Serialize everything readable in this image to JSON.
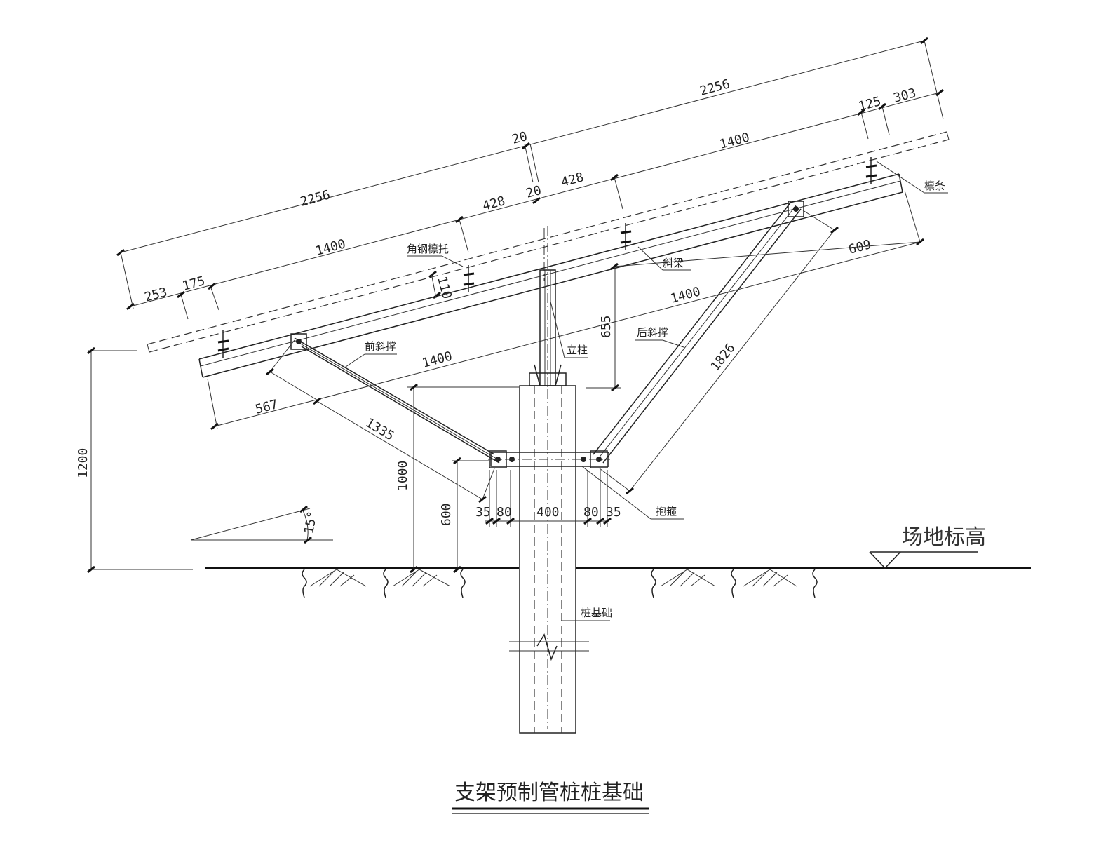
{
  "drawing": {
    "title": "支架预制管桩桩基础",
    "components": {
      "purlin": "檩条",
      "angle_purlin_support": "角钢檩托",
      "inclined_beam": "斜梁",
      "front_brace": "前斜撑",
      "rear_brace": "后斜撑",
      "column": "立柱",
      "hoop": "抱箍",
      "pile_foundation": "桩基础",
      "site_elevation": "场地标高"
    },
    "dimensions": {
      "top_left_2256": "2256",
      "top_right_2256": "2256",
      "gap_20_top": "20",
      "gap_20_mid": "20",
      "left_1400_upper": "1400",
      "left_428": "428",
      "right_428": "428",
      "right_1400_upper": "1400",
      "left_253": "253",
      "left_175": "175",
      "right_125": "125",
      "right_303": "303",
      "purlin_110": "110",
      "col_655": "655",
      "right_609": "609",
      "lower_1400_right": "1400",
      "lower_1400_left": "1400",
      "brace_567": "567",
      "brace_1335": "1335",
      "brace_1826": "1826",
      "height_1200": "1200",
      "height_1000": "1000",
      "height_600": "600",
      "bottom_35_left": "35",
      "bottom_80_left": "80",
      "bottom_400": "400",
      "bottom_80_right": "80",
      "bottom_35_right": "35",
      "tilt_angle": "15°"
    }
  }
}
